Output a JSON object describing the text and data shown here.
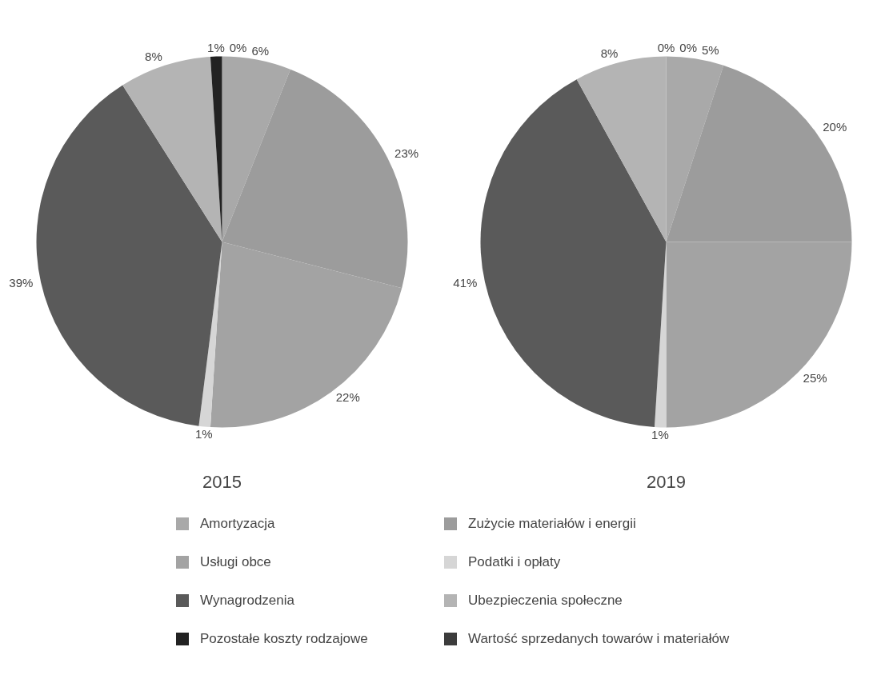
{
  "chart_data": [
    {
      "type": "pie",
      "title": "2015",
      "legend": "bottom",
      "categories": [
        "Amortyzacja",
        "Zużycie materiałów i energii",
        "Usługi obce",
        "Podatki i opłaty",
        "Wynagrodzenia",
        "Ubezpieczenia społeczne",
        "Pozostałe koszty rodzajowe",
        "Wartość sprzedanych towarów i materiałów"
      ],
      "values": [
        6,
        23,
        22,
        1,
        39,
        8,
        1,
        0
      ],
      "value_labels": [
        "6%",
        "23%",
        "22%",
        "1%",
        "39%",
        "8%",
        "1%",
        "0%"
      ],
      "colors": [
        "#a9a9a9",
        "#9c9c9c",
        "#a3a3a3",
        "#d6d6d6",
        "#5a5a5a",
        "#b4b4b4",
        "#222222",
        "#3c3c3c"
      ]
    },
    {
      "type": "pie",
      "title": "2019",
      "categories": [
        null,
        null,
        null,
        null,
        null,
        null,
        null,
        null
      ],
      "values": [
        5,
        20,
        25,
        1,
        41,
        8,
        0,
        0
      ],
      "value_labels": [
        "5%",
        "20%",
        "25%",
        "1%",
        "41%",
        "8%",
        "0%",
        "0%"
      ],
      "colors": [
        "#a9a9a9",
        "#9c9c9c",
        "#a3a3a3",
        "#d6d6d6",
        "#5a5a5a",
        "#b4b4b4",
        "#222222",
        "#3c3c3c"
      ]
    }
  ]
}
